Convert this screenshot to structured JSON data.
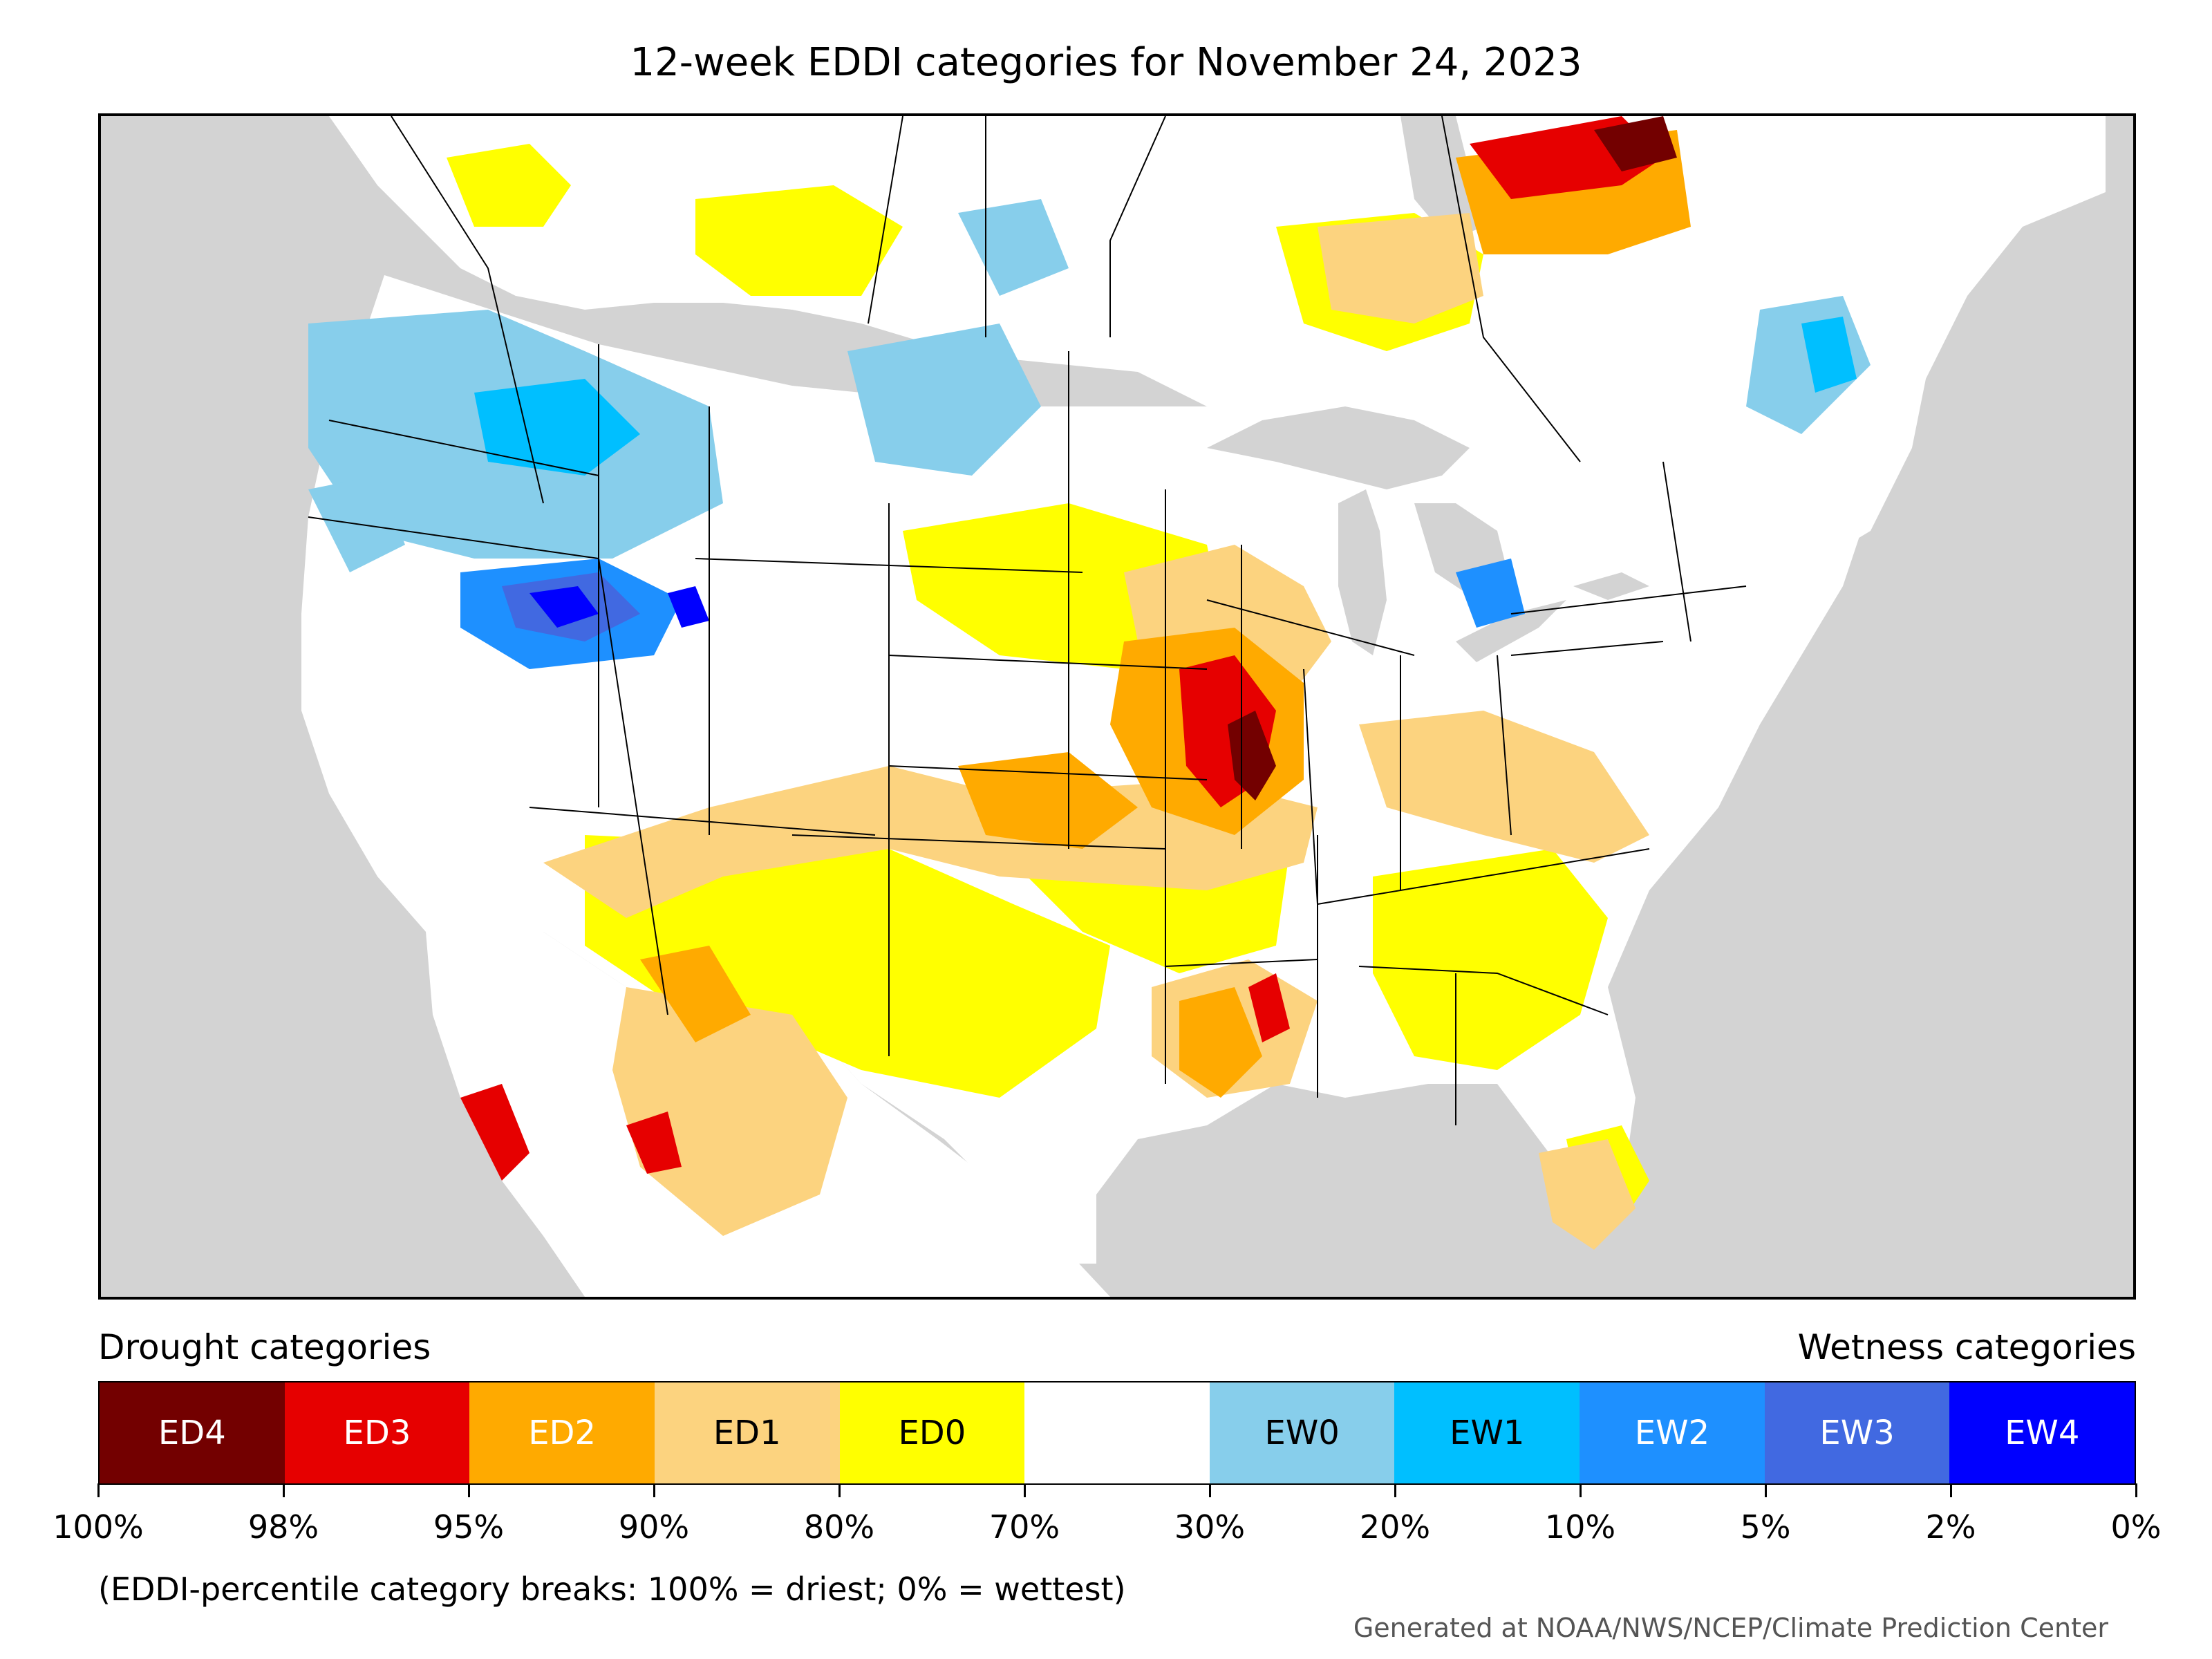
{
  "title": "12-week EDDI categories for November 24, 2023",
  "drought_heading": "Drought categories",
  "wetness_heading": "Wetness categories",
  "categories": [
    {
      "label": "ED4",
      "color": "#730000",
      "text_color": "#ffffff"
    },
    {
      "label": "ED3",
      "color": "#e60000",
      "text_color": "#ffffff"
    },
    {
      "label": "ED2",
      "color": "#ffaa00",
      "text_color": "#ffffff"
    },
    {
      "label": "ED1",
      "color": "#fcd37f",
      "text_color": "#000000"
    },
    {
      "label": "ED0",
      "color": "#ffff00",
      "text_color": "#000000"
    },
    {
      "label": "",
      "color": "#ffffff",
      "text_color": "#000000"
    },
    {
      "label": "EW0",
      "color": "#87ceeb",
      "text_color": "#000000"
    },
    {
      "label": "EW1",
      "color": "#00bfff",
      "text_color": "#000000"
    },
    {
      "label": "EW2",
      "color": "#1e90ff",
      "text_color": "#ffffff"
    },
    {
      "label": "EW3",
      "color": "#4169e1",
      "text_color": "#ffffff"
    },
    {
      "label": "EW4",
      "color": "#0000ff",
      "text_color": "#ffffff"
    }
  ],
  "tick_labels": [
    "100%",
    "98%",
    "95%",
    "90%",
    "80%",
    "70%",
    "30%",
    "20%",
    "10%",
    "5%",
    "2%",
    "0%"
  ],
  "note": "(EDDI-percentile category breaks: 100% = driest; 0% = wettest)",
  "credit": "Generated at NOAA/NWS/NCEP/Climate Prediction Center",
  "map": {
    "ocean_color": "#d3d3d3",
    "land_color": "#ffffff",
    "border_color": "#000000"
  }
}
